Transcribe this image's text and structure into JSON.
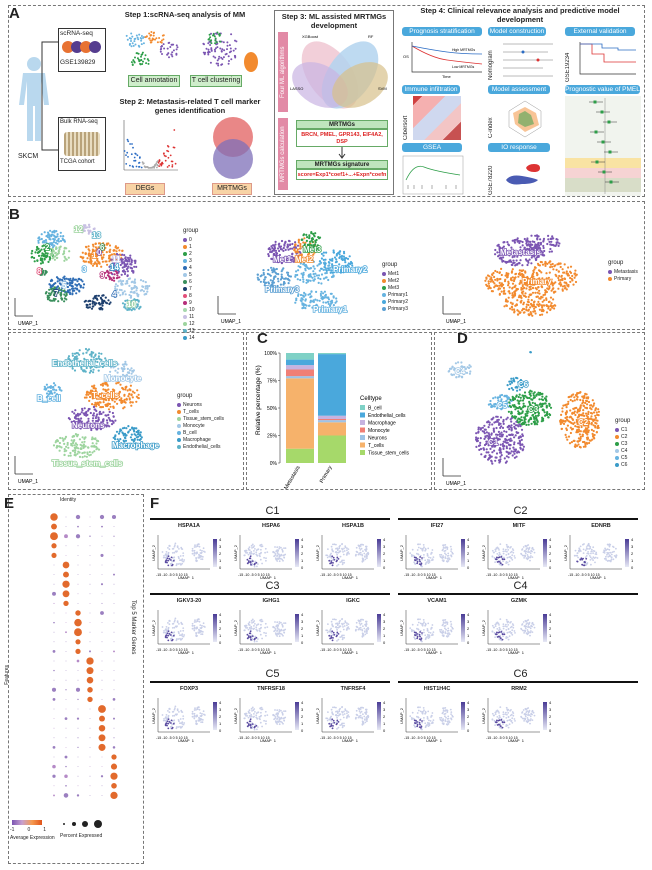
{
  "panels": {
    "a": "A",
    "b": "B",
    "c": "C",
    "d": "D",
    "e": "E",
    "f": "F"
  },
  "step1": "Step 1:scRNA-seq analysis of MM",
  "step2": "Step 2: Metastasis-related T cell marker genes identification",
  "step3": "Step 3: ML assisted MRTMGs development",
  "step4": "Step 4: Clinical relevance analysis and predictive model development",
  "skcm": "SKCM",
  "scrna": "scRNA-seq",
  "gse": "GSE139829",
  "bulk": "Bulk RNA-seq",
  "tcga": "TCGA cohort",
  "cellann": "Cell annotation",
  "tclust": "T cell clustering",
  "degs": "DEGs",
  "mrtmgs": "MRTMGs",
  "fourml": "Four ML algorithms",
  "mrtmgscalc": "MRTMGs calculation",
  "mrtmgs_title": "MRTMGs",
  "mrtmgs_genes": "BRCN, PMEL, GPR143, EIF4A2, DSP",
  "sig_title": "MRTMGs signature",
  "sig_formula": "score=Exp1*coef1+...+Expn*coefn",
  "venn": {
    "a": "XGBoost",
    "b": "RF",
    "c": "LASSO",
    "d": "SVM"
  },
  "step4_items": [
    "Prognosis stratification",
    "Model construction",
    "External validation",
    "Immune infiltration",
    "Model assessment",
    "Prognostic value of PMEL",
    "GSEA",
    "IO response"
  ],
  "step4_side": {
    "nomogram": "Nomogram",
    "gse19234": "GSE19234",
    "cibersort": "Cibersort",
    "cindex": "C-index",
    "gse78220": "GSE78220",
    "high": "High MRTMGs",
    "low": "Low MRTMGs",
    "os": "OS",
    "time": "Time"
  },
  "umap1": "UMAP_1",
  "umap2": "UMAP_2",
  "group": "group",
  "b1_legend": [
    "0",
    "1",
    "2",
    "3",
    "4",
    "5",
    "6",
    "7",
    "8",
    "9",
    "10",
    "11",
    "12",
    "13",
    "14"
  ],
  "b1_colors": [
    "#7b55b2",
    "#f28a2e",
    "#2d9e48",
    "#66b3e0",
    "#2f6db5",
    "#a3c8e6",
    "#3a8f5c",
    "#1d3f6e",
    "#e34f7a",
    "#b52f7a",
    "#a6d7ad",
    "#c8c0e3",
    "#9dd49e",
    "#5fb3c8",
    "#3a9bc8"
  ],
  "b2_legend": [
    "Met1",
    "Met2",
    "Met3",
    "Primary1",
    "Primary2",
    "Primary3"
  ],
  "b2_colors": [
    "#7b55b2",
    "#f28a2e",
    "#2d9e48",
    "#66b3e0",
    "#4aa8dc",
    "#5b9fd2"
  ],
  "b2_labels": [
    "Met1",
    "Met2",
    "Met3",
    "Primary1",
    "Primary2",
    "Primary3"
  ],
  "b3_legend": [
    "Metastasis",
    "Primary"
  ],
  "b3_colors": [
    "#7b55b2",
    "#f28a2e"
  ],
  "b3_labels": [
    "Metastasis",
    "Primary"
  ],
  "b4_legend": [
    "Neurons",
    "T_cells",
    "Tissue_stem_cells",
    "Monocyte",
    "B_cell",
    "Macrophage",
    "Endothelial_cells"
  ],
  "b4_colors": [
    "#7b55b2",
    "#f28a2e",
    "#9dd49e",
    "#a3c8e6",
    "#66b3e0",
    "#3a9bc8",
    "#5fb3c8"
  ],
  "b4_labels": [
    "Endothelial_cells",
    "Monocyte",
    "B_cell",
    "T_cells",
    "Neurons",
    "Macrophage",
    "Tissue_stem_cells"
  ],
  "b1_labels": [
    "2",
    "0",
    "11",
    "12",
    "13",
    "6",
    "8",
    "5",
    "1",
    "4",
    "7",
    "9",
    "3",
    "10",
    "14"
  ],
  "d_legend": [
    "C1",
    "C2",
    "C3",
    "C4",
    "C5",
    "C6"
  ],
  "d_colors": [
    "#7b55b2",
    "#f28a2e",
    "#2d9e48",
    "#a3c8e6",
    "#66b3e0",
    "#3a9bc8"
  ],
  "d_labels": [
    "C6",
    "C4",
    "C5",
    "C3",
    "C1",
    "C2"
  ],
  "chart_data": {
    "type": "bar",
    "title": "",
    "ylabel": "Relative percentage (%)",
    "categories": [
      "Metastasis",
      "Primary"
    ],
    "ylim": [
      0,
      100
    ],
    "yticks": [
      "0%",
      "25%",
      "50%",
      "75%",
      "100%"
    ],
    "legend_title": "Celltype",
    "series": [
      {
        "name": "B_cell",
        "color": "#7fd1c6",
        "values": [
          6,
          1
        ]
      },
      {
        "name": "Endothelial_cells",
        "color": "#4aa8dc",
        "values": [
          5,
          56
        ]
      },
      {
        "name": "Macrophage",
        "color": "#c6b3e0",
        "values": [
          4,
          3
        ]
      },
      {
        "name": "Monocyte",
        "color": "#f07f76",
        "values": [
          6,
          1
        ]
      },
      {
        "name": "Neurons",
        "color": "#9ec3e6",
        "values": [
          2,
          2
        ]
      },
      {
        "name": "T_cells",
        "color": "#f6b26b",
        "values": [
          64,
          12
        ]
      },
      {
        "name": "Tissue_stem_cells",
        "color": "#a6d96a",
        "values": [
          13,
          25
        ]
      }
    ]
  },
  "e_title": "Identity",
  "e_side": "Top 5 Marker Genes",
  "e_ylab": "Features",
  "e_legend": {
    "avg": "Average Expression",
    "pct": "Percent Expressed",
    "avg_ticks": [
      "-1",
      "0",
      "1"
    ],
    "pct_ticks": [
      "0",
      "25",
      "50",
      "75",
      "100"
    ]
  },
  "f": {
    "clusters": [
      "C1",
      "C2",
      "C3",
      "C4",
      "C5",
      "C6"
    ],
    "genes": {
      "C1": [
        "HSPA1A",
        "HSPA6",
        "HSPA1B"
      ],
      "C2": [
        "IFI27",
        "MITF",
        "EDNRB"
      ],
      "C3": [
        "IGKV3-20",
        "IGHG1",
        "IGKC"
      ],
      "C4": [
        "VCAM1",
        "GZMK"
      ],
      "C5": [
        "FOXP3",
        "TNFRSF18",
        "TNFRSF4"
      ],
      "C6": [
        "HIST1H4C",
        "RRM2"
      ]
    },
    "xticks": "-15 -10 -5 0 5 10 15",
    "scale": [
      "4",
      "3",
      "2",
      "1",
      "0"
    ]
  }
}
